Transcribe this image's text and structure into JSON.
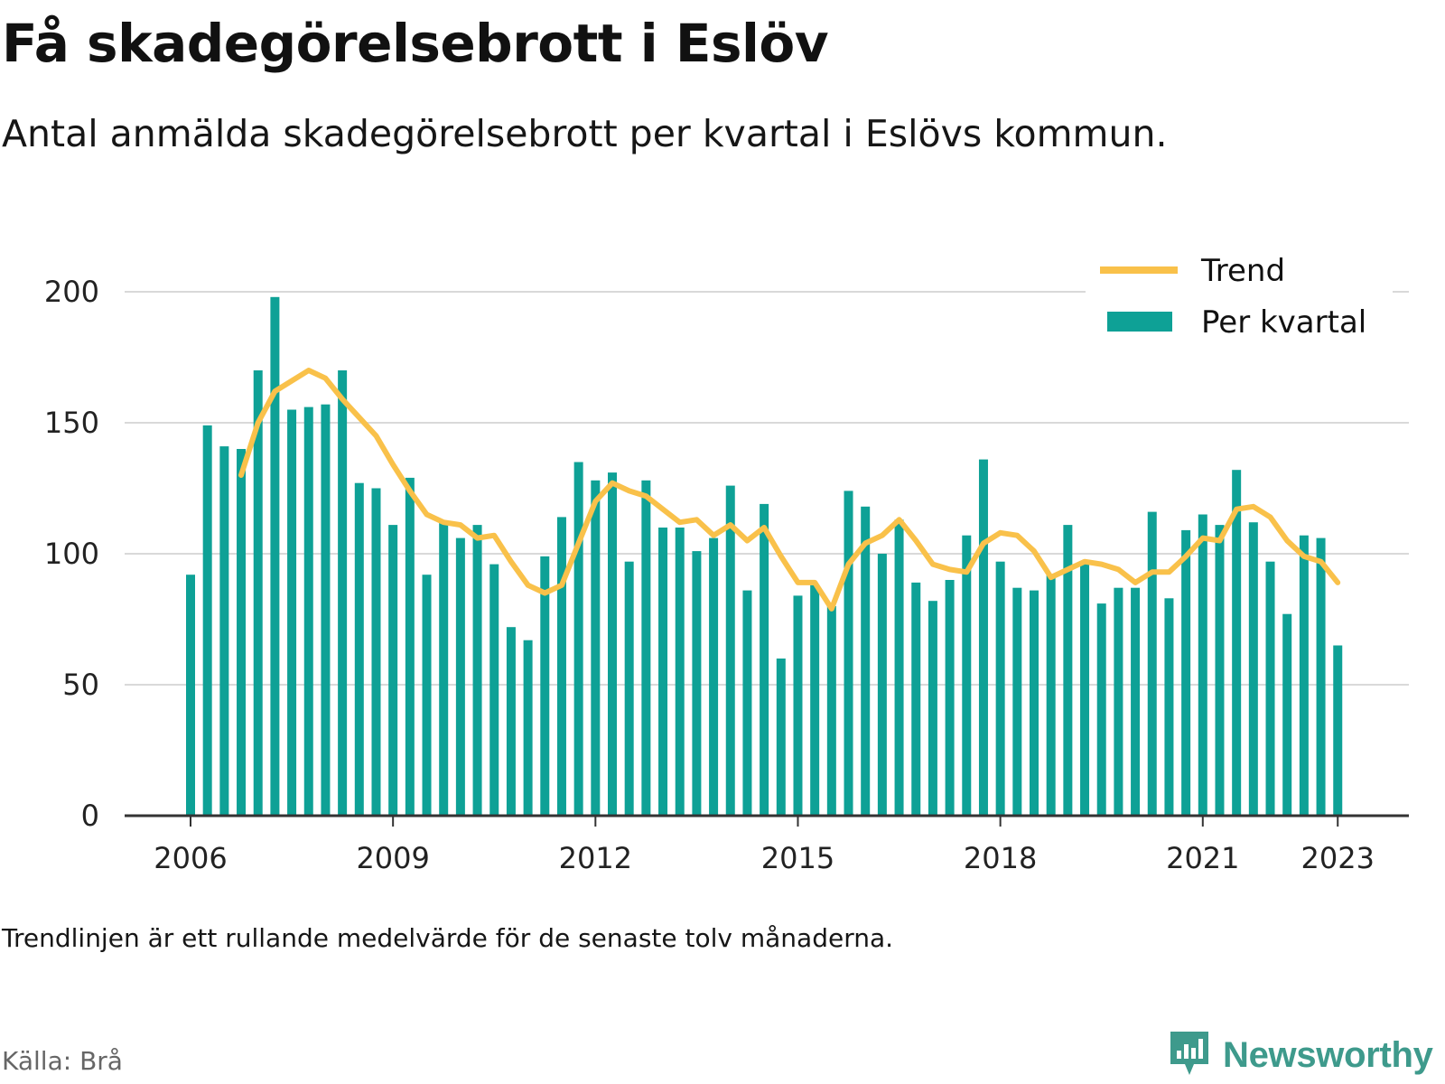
{
  "header": {
    "title": "Få skadegörelsebrott i Eslöv",
    "subtitle": "Antal anmälda skadegörelsebrott per kvartal i Eslövs kommun."
  },
  "footer": {
    "note": "Trendlinjen är ett rullande medelvärde för de senaste tolv månaderna.",
    "source": "Källa: Brå",
    "brand": "Newsworthy"
  },
  "colors": {
    "bars": "#0ea196",
    "trend": "#f9c14a",
    "grid": "#d9d9d9",
    "axis": "#333333",
    "brand": "#3e9a8c"
  },
  "chart_data": {
    "type": "bar",
    "x_start": "2006 Q1",
    "x_ticks": [
      "2006",
      "2009",
      "2012",
      "2015",
      "2018",
      "2021",
      "2023"
    ],
    "y_ticks": [
      0,
      50,
      100,
      150,
      200
    ],
    "ylim": [
      0,
      200
    ],
    "grid": true,
    "legend_position": "top-right",
    "series": [
      {
        "name": "Per kvartal",
        "type": "bar",
        "values": [
          92,
          149,
          141,
          140,
          170,
          198,
          155,
          156,
          157,
          170,
          127,
          125,
          111,
          129,
          92,
          112,
          106,
          111,
          96,
          72,
          67,
          99,
          114,
          135,
          128,
          131,
          97,
          128,
          110,
          110,
          101,
          106,
          126,
          86,
          119,
          60,
          84,
          88,
          80,
          124,
          118,
          100,
          113,
          89,
          82,
          90,
          107,
          136,
          97,
          87,
          86,
          92,
          111,
          97,
          81,
          87,
          87,
          116,
          83,
          109,
          115,
          111,
          132,
          112,
          97,
          77,
          107,
          106,
          65
        ]
      },
      {
        "name": "Trend",
        "type": "line",
        "values": [
          null,
          null,
          null,
          130,
          150,
          162,
          166,
          170,
          167,
          159,
          152,
          145,
          134,
          124,
          115,
          112,
          111,
          106,
          107,
          97,
          88,
          85,
          88,
          104,
          120,
          127,
          124,
          122,
          117,
          112,
          113,
          107,
          111,
          105,
          110,
          99,
          89,
          89,
          79,
          96,
          104,
          107,
          113,
          105,
          96,
          94,
          93,
          104,
          108,
          107,
          101,
          91,
          94,
          97,
          96,
          94,
          89,
          93,
          93,
          99,
          106,
          105,
          117,
          118,
          114,
          105,
          99,
          97,
          89
        ]
      }
    ]
  }
}
